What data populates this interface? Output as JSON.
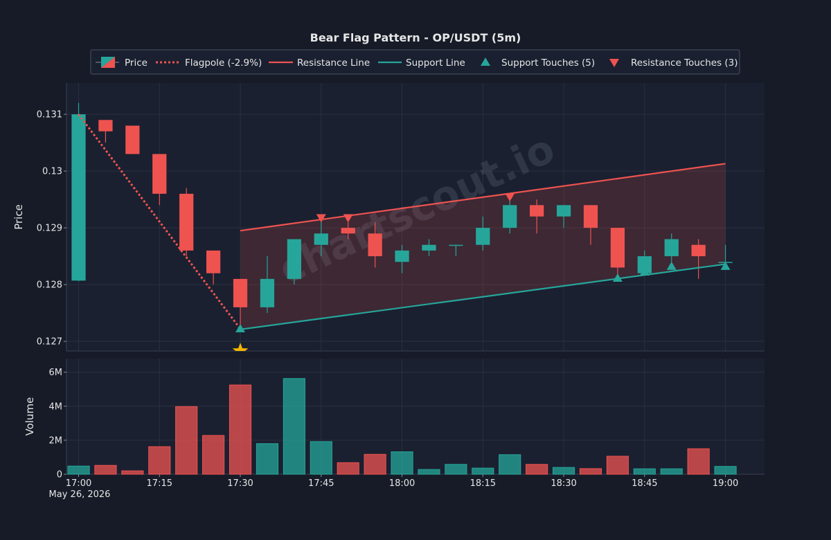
{
  "chart_data": {
    "type": "candlestick",
    "title": "Bear Flag Pattern - OP/USDT (5m)",
    "watermark": "chartscout.io",
    "date_label": "May 26, 2026",
    "colors": {
      "background": "#161b27",
      "panel": "#1a2030",
      "up": "#26a69a",
      "down": "#ef5350",
      "marker": "#f5b400",
      "text": "#e6e6e6",
      "grid": "#2a3040"
    },
    "legend": {
      "placement": "top-center",
      "items": [
        {
          "key": "price",
          "label": "Price"
        },
        {
          "key": "flagpole",
          "label": "Flagpole (-2.9%)"
        },
        {
          "key": "resistance",
          "label": "Resistance Line"
        },
        {
          "key": "support",
          "label": "Support Line"
        },
        {
          "key": "support_touches",
          "label": "Support Touches (5)"
        },
        {
          "key": "resistance_touches",
          "label": "Resistance Touches (3)"
        }
      ]
    },
    "price_panel": {
      "ylabel": "Price",
      "ylim": [
        0.12683,
        0.13155
      ],
      "yticks": [
        0.127,
        0.128,
        0.129,
        0.13,
        0.131
      ],
      "ytick_labels": [
        "0.127",
        "0.128",
        "0.129",
        "0.13",
        "0.131"
      ],
      "grid": true
    },
    "volume_panel": {
      "ylabel": "Volume",
      "ylim": [
        0,
        6800000
      ],
      "yticks": [
        0,
        2000000,
        4000000,
        6000000
      ],
      "ytick_labels": [
        "0",
        "2M",
        "4M",
        "6M"
      ],
      "grid": true
    },
    "x_axis": {
      "xlim": [
        -0.45,
        25.45
      ],
      "ticks": [
        0,
        3,
        6,
        9,
        12,
        15,
        18,
        21,
        24
      ],
      "tick_labels": [
        "17:00",
        "17:15",
        "17:30",
        "17:45",
        "18:00",
        "18:15",
        "18:30",
        "18:45",
        "19:00"
      ]
    },
    "candles": [
      {
        "time": "17:00",
        "open": 0.12807,
        "high": 0.1312,
        "low": 0.12806,
        "close": 0.131,
        "volume": 480000
      },
      {
        "time": "17:05",
        "open": 0.1309,
        "high": 0.1309,
        "low": 0.1305,
        "close": 0.1307,
        "volume": 520000
      },
      {
        "time": "17:10",
        "open": 0.1308,
        "high": 0.1308,
        "low": 0.1303,
        "close": 0.1303,
        "volume": 200000
      },
      {
        "time": "17:15",
        "open": 0.1303,
        "high": 0.1303,
        "low": 0.1294,
        "close": 0.1296,
        "volume": 1620000
      },
      {
        "time": "17:20",
        "open": 0.1296,
        "high": 0.1297,
        "low": 0.1285,
        "close": 0.1286,
        "volume": 3980000
      },
      {
        "time": "17:25",
        "open": 0.1286,
        "high": 0.1286,
        "low": 0.128,
        "close": 0.1282,
        "volume": 2280000
      },
      {
        "time": "17:30",
        "open": 0.1281,
        "high": 0.1281,
        "low": 0.1272,
        "close": 0.1276,
        "volume": 5250000
      },
      {
        "time": "17:35",
        "open": 0.1276,
        "high": 0.1285,
        "low": 0.1275,
        "close": 0.1281,
        "volume": 1800000
      },
      {
        "time": "17:40",
        "open": 0.1281,
        "high": 0.1288,
        "low": 0.128,
        "close": 0.1288,
        "volume": 5630000
      },
      {
        "time": "17:45",
        "open": 0.1287,
        "high": 0.1292,
        "low": 0.1285,
        "close": 0.1289,
        "volume": 1920000
      },
      {
        "time": "17:50",
        "open": 0.129,
        "high": 0.1291,
        "low": 0.1288,
        "close": 0.1289,
        "volume": 680000
      },
      {
        "time": "17:55",
        "open": 0.1289,
        "high": 0.1291,
        "low": 0.1283,
        "close": 0.1285,
        "volume": 1170000
      },
      {
        "time": "18:00",
        "open": 0.1284,
        "high": 0.1287,
        "low": 0.1282,
        "close": 0.1286,
        "volume": 1320000
      },
      {
        "time": "18:05",
        "open": 0.1286,
        "high": 0.1288,
        "low": 0.1285,
        "close": 0.1287,
        "volume": 280000
      },
      {
        "time": "18:10",
        "open": 0.1287,
        "high": 0.1287,
        "low": 0.1285,
        "close": 0.1287,
        "volume": 580000
      },
      {
        "time": "18:15",
        "open": 0.1287,
        "high": 0.1292,
        "low": 0.1286,
        "close": 0.129,
        "volume": 360000
      },
      {
        "time": "18:20",
        "open": 0.129,
        "high": 0.1295,
        "low": 0.1289,
        "close": 0.1294,
        "volume": 1150000
      },
      {
        "time": "18:25",
        "open": 0.1294,
        "high": 0.1295,
        "low": 0.1289,
        "close": 0.1292,
        "volume": 580000
      },
      {
        "time": "18:30",
        "open": 0.1292,
        "high": 0.1294,
        "low": 0.129,
        "close": 0.1294,
        "volume": 400000
      },
      {
        "time": "18:35",
        "open": 0.1294,
        "high": 0.1294,
        "low": 0.1287,
        "close": 0.129,
        "volume": 330000
      },
      {
        "time": "18:40",
        "open": 0.129,
        "high": 0.129,
        "low": 0.1281,
        "close": 0.1283,
        "volume": 1060000
      },
      {
        "time": "18:45",
        "open": 0.1282,
        "high": 0.1286,
        "low": 0.1282,
        "close": 0.1285,
        "volume": 320000
      },
      {
        "time": "18:50",
        "open": 0.1285,
        "high": 0.1289,
        "low": 0.1284,
        "close": 0.1288,
        "volume": 320000
      },
      {
        "time": "18:55",
        "open": 0.1287,
        "high": 0.1288,
        "low": 0.1281,
        "close": 0.1285,
        "volume": 1500000
      },
      {
        "time": "19:00",
        "open": 0.1284,
        "high": 0.1287,
        "low": 0.1283,
        "close": 0.1284,
        "volume": 460000
      }
    ],
    "flagpole": {
      "x": [
        0,
        6
      ],
      "y": [
        0.131,
        0.12722
      ],
      "change_pct": -2.9
    },
    "resistance_line": {
      "x": [
        6,
        24
      ],
      "y": [
        0.12895,
        0.13013
      ]
    },
    "support_line": {
      "x": [
        6,
        24
      ],
      "y": [
        0.12721,
        0.12836
      ]
    },
    "support_touches": [
      {
        "x": 6,
        "y": 0.12722
      },
      {
        "x": 20,
        "y": 0.12811
      },
      {
        "x": 21,
        "y": 0.12822
      },
      {
        "x": 22,
        "y": 0.12832
      },
      {
        "x": 24,
        "y": 0.12832
      }
    ],
    "resistance_touches": [
      {
        "x": 9,
        "y": 0.12918
      },
      {
        "x": 10,
        "y": 0.12918
      },
      {
        "x": 16,
        "y": 0.12955
      }
    ],
    "marker": {
      "x": 6,
      "y": 0.12683,
      "symbol": "star"
    }
  }
}
